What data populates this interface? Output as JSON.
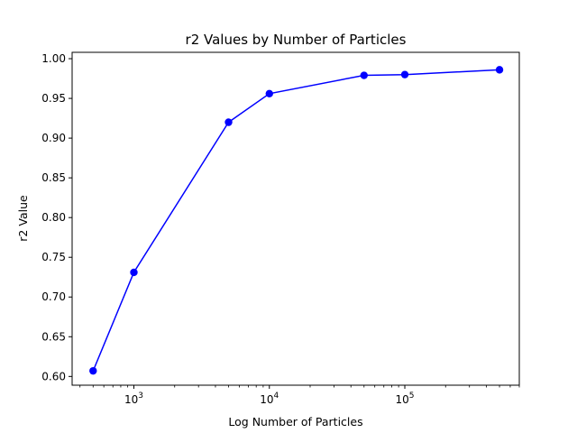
{
  "chart_data": {
    "type": "line",
    "title": "r2 Values by Number of Particles",
    "xlabel": "Log Number of Particles",
    "ylabel": "r2 Value",
    "x_scale": "log",
    "xlim": [
      350,
      700000
    ],
    "ylim": [
      0.589,
      1.008
    ],
    "x_major_ticks": [
      {
        "value": 1000,
        "base": "10",
        "exp": "3"
      },
      {
        "value": 10000,
        "base": "10",
        "exp": "4"
      },
      {
        "value": 100000,
        "base": "10",
        "exp": "5"
      }
    ],
    "y_ticks": [
      {
        "value": 0.6,
        "label": "0.60"
      },
      {
        "value": 0.65,
        "label": "0.65"
      },
      {
        "value": 0.7,
        "label": "0.70"
      },
      {
        "value": 0.75,
        "label": "0.75"
      },
      {
        "value": 0.8,
        "label": "0.80"
      },
      {
        "value": 0.85,
        "label": "0.85"
      },
      {
        "value": 0.9,
        "label": "0.90"
      },
      {
        "value": 0.95,
        "label": "0.95"
      },
      {
        "value": 1.0,
        "label": "1.00"
      }
    ],
    "grid": false,
    "series": [
      {
        "color": "#0000ff",
        "marker": "circle",
        "x": [
          500,
          1000,
          5000,
          10000,
          50000,
          100000,
          500000
        ],
        "y": [
          0.607,
          0.731,
          0.92,
          0.956,
          0.979,
          0.98,
          0.986
        ]
      }
    ]
  }
}
